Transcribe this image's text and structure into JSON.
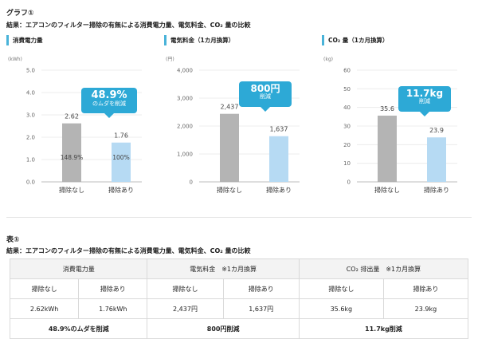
{
  "section1": {
    "label": "グラフ①",
    "subtitle": "結果：エアコンのフィルター掃除の有無による消費電力量、電気料金、CO₂ 量の比較"
  },
  "section2": {
    "label": "表①",
    "subtitle": "結果：エアコンのフィルター掃除の有無による消費電力量、電気料金、CO₂ 量の比較"
  },
  "colors": {
    "bar_before": "#b4b4b4",
    "bar_after": "#b6daf3",
    "accent": "#2da9d6",
    "title_bar": "#49b3d9"
  },
  "chart_data": [
    {
      "type": "bar",
      "title": "消費電力量",
      "unit": "(kWh)",
      "categories": [
        "掃除なし",
        "掃除あり"
      ],
      "values": [
        2.62,
        1.76
      ],
      "value_labels": [
        "2.62",
        "1.76"
      ],
      "inner_labels": [
        "148.9%",
        "100%"
      ],
      "ylim": [
        0,
        5
      ],
      "yticks": [
        "0.0",
        "1.0",
        "2.0",
        "3.0",
        "4.0",
        "5.0"
      ],
      "grid": true,
      "callout": {
        "big": "48.9%",
        "small": "のムダを削減"
      }
    },
    {
      "type": "bar",
      "title": "電気料金（1カ月換算）",
      "unit": "(円)",
      "categories": [
        "掃除なし",
        "掃除あり"
      ],
      "values": [
        2437,
        1637
      ],
      "value_labels": [
        "2,437",
        "1,637"
      ],
      "inner_labels": [
        "",
        ""
      ],
      "ylim": [
        0,
        4000
      ],
      "yticks": [
        "0",
        "1,000",
        "2,000",
        "3,000",
        "4,000"
      ],
      "grid": true,
      "callout": {
        "big": "800円",
        "small": "削減"
      }
    },
    {
      "type": "bar",
      "title": "CO₂ 量（1カ月換算）",
      "unit": "(kg)",
      "categories": [
        "掃除なし",
        "掃除あり"
      ],
      "values": [
        35.6,
        23.9
      ],
      "value_labels": [
        "35.6",
        "23.9"
      ],
      "inner_labels": [
        "",
        ""
      ],
      "ylim": [
        0,
        60
      ],
      "yticks": [
        "0",
        "10",
        "20",
        "30",
        "40",
        "50",
        "60"
      ],
      "grid": true,
      "callout": {
        "big": "11.7kg",
        "small": "削減"
      }
    }
  ],
  "table": {
    "groups": [
      "消費電力量",
      "電気料金　※1カ月換算",
      "CO₂ 排出量　※1カ月換算"
    ],
    "subheaders": [
      "掃除なし",
      "掃除あり",
      "掃除なし",
      "掃除あり",
      "掃除なし",
      "掃除あり"
    ],
    "values": [
      "2.62kWh",
      "1.76kWh",
      "2,437円",
      "1,637円",
      "35.6kg",
      "23.9kg"
    ],
    "summary": [
      "48.9%のムダを削減",
      "800円削減",
      "11.7kg削減"
    ]
  }
}
